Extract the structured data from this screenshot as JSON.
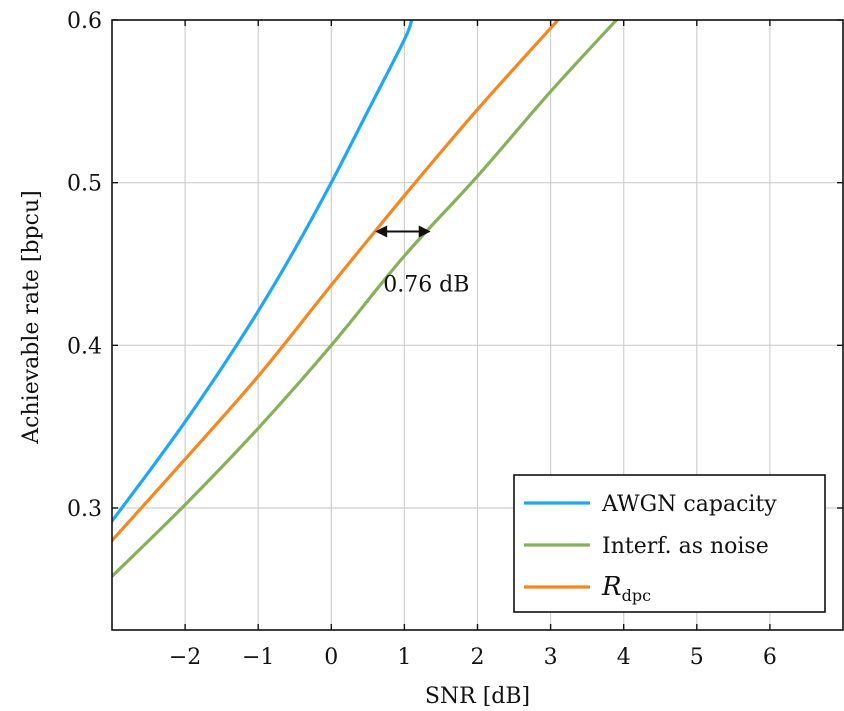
{
  "chart_data": {
    "type": "line",
    "xlabel": "SNR [dB]",
    "ylabel": "Achievable rate [bpcu]",
    "xlim": [
      -3,
      7
    ],
    "ylim": [
      0.225,
      0.6
    ],
    "xticks": [
      -2,
      -1,
      0,
      1,
      2,
      3,
      4,
      5,
      6
    ],
    "xtick_labels": [
      "−2",
      "−1",
      "0",
      "1",
      "2",
      "3",
      "4",
      "5",
      "6"
    ],
    "yticks": [
      0.3,
      0.4,
      0.5,
      0.6
    ],
    "ytick_labels": [
      "0.3",
      "0.4",
      "0.5",
      "0.6"
    ],
    "grid": true,
    "legend_position": "bottom-right",
    "series": [
      {
        "name": "AWGN capacity",
        "color": "#1ea7f5",
        "x": [
          -3,
          -2.5,
          -2,
          -1.5,
          -1,
          -0.5,
          0,
          0.5,
          1,
          1.1
        ],
        "y": [
          0.292,
          0.322,
          0.353,
          0.386,
          0.421,
          0.459,
          0.5,
          0.544,
          0.588,
          0.6
        ]
      },
      {
        "name": "Interf. as noise",
        "color": "#86b05a",
        "x": [
          -3,
          -2,
          -1,
          0,
          1,
          2,
          3,
          3.9
        ],
        "y": [
          0.258,
          0.302,
          0.349,
          0.4,
          0.455,
          0.504,
          0.556,
          0.6
        ]
      },
      {
        "name": "R_dpc",
        "legend_label": "R",
        "legend_subscript": "dpc",
        "color": "#f5871f",
        "x": [
          -3,
          -2,
          -1,
          0,
          1,
          2,
          3,
          3.1
        ],
        "y": [
          0.28,
          0.33,
          0.381,
          0.437,
          0.492,
          0.545,
          0.595,
          0.6
        ]
      }
    ],
    "annotations": [
      {
        "text": "0.76 dB",
        "type": "double-arrow",
        "x_start": 0.6,
        "x_end": 1.36,
        "y": 0.47,
        "label_x": 1.3,
        "label_y": 0.438
      }
    ]
  }
}
